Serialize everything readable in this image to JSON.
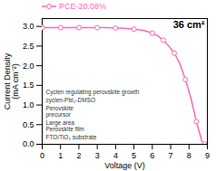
{
  "chart_data": {
    "type": "line",
    "title": "36 cm²",
    "xlabel": "Voltage (V)",
    "ylabel": "Current Density\n(mA cm⁻²)",
    "series": [
      {
        "name": "PCE-20.08%",
        "color": "#FF69B4",
        "marker": "circle",
        "x": [
          0.0,
          0.5,
          1.0,
          1.5,
          2.0,
          2.5,
          3.0,
          3.5,
          4.0,
          4.5,
          5.0,
          5.5,
          6.0,
          6.3,
          6.6,
          6.9,
          7.2,
          7.5,
          7.8,
          8.1,
          8.4,
          8.7,
          8.85,
          8.95
        ],
        "values": [
          2.97,
          2.97,
          2.97,
          2.97,
          2.97,
          2.97,
          2.97,
          2.97,
          2.96,
          2.95,
          2.93,
          2.9,
          2.83,
          2.76,
          2.65,
          2.5,
          2.32,
          2.05,
          1.65,
          1.18,
          0.58,
          0.08,
          0.01,
          0.0
        ],
        "marker_x": [
          0.0,
          1.0,
          2.0,
          3.0,
          4.0,
          5.0,
          6.0,
          6.6,
          7.2,
          7.8,
          8.4,
          8.85
        ],
        "marker_values": [
          2.97,
          2.97,
          2.97,
          2.97,
          2.96,
          2.93,
          2.83,
          2.65,
          2.32,
          1.65,
          0.58,
          0.01
        ]
      }
    ],
    "xlim": [
      0,
      9
    ],
    "ylim": [
      0,
      3.2
    ],
    "xticks": [
      0,
      1,
      2,
      3,
      4,
      5,
      6,
      7,
      8,
      9
    ],
    "yticks": [
      {
        "value": 0.0,
        "label": "0.0"
      },
      {
        "value": 0.5,
        "label": "0.5"
      },
      {
        "value": 1.0,
        "label": "1.0"
      },
      {
        "value": 1.5,
        "label": "1.5"
      },
      {
        "value": 2.0,
        "label": "2.0"
      },
      {
        "value": 2.5,
        "label": "2.5"
      },
      {
        "value": 3.0,
        "label": "3.0"
      }
    ],
    "grid": false,
    "legend": "upper left",
    "annotations": [
      "Cyclen regulating perovskite growth",
      "cyclen-PbI₂-DMSO",
      "Perovskite\nprecursor",
      "Large area\nPerovskite film",
      "FTO/TiO₂ substrate"
    ]
  }
}
